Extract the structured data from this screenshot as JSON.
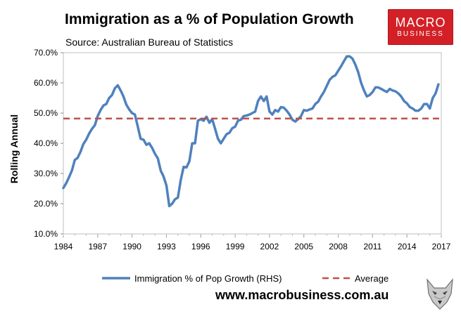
{
  "header": {
    "title": "Immigration as a % of Population Growth",
    "subtitle": "Source: Australian Bureau of Statistics"
  },
  "logo": {
    "top": "MACRO",
    "bottom": "BUSINESS",
    "color": "#d32027"
  },
  "footer": {
    "url": "www.macrobusiness.com.au",
    "icon": "wolf-icon"
  },
  "chart_data": {
    "type": "line",
    "title": "Immigration as a % of Population Growth",
    "ylabel": "Rolling Annual",
    "xlabel": "",
    "ylim": [
      0.1,
      0.7
    ],
    "xlim": [
      1984,
      2017
    ],
    "y_ticks": [
      "10.0%",
      "20.0%",
      "30.0%",
      "40.0%",
      "50.0%",
      "60.0%",
      "70.0%"
    ],
    "x_ticks": [
      "1984",
      "1987",
      "1990",
      "1993",
      "1996",
      "1999",
      "2002",
      "2005",
      "2008",
      "2011",
      "2014",
      "2017"
    ],
    "grid": false,
    "legend_position": "bottom",
    "series": [
      {
        "name": "Immigration % of Pop Growth (RHS)",
        "color": "#4f81bd",
        "style": "solid",
        "x": [
          1984.0,
          1984.25,
          1984.5,
          1984.75,
          1985.0,
          1985.25,
          1985.5,
          1985.75,
          1986.0,
          1986.25,
          1986.5,
          1986.75,
          1987.0,
          1987.25,
          1987.5,
          1987.75,
          1988.0,
          1988.25,
          1988.5,
          1988.75,
          1989.0,
          1989.25,
          1989.5,
          1989.75,
          1990.0,
          1990.25,
          1990.5,
          1990.75,
          1991.0,
          1991.25,
          1991.5,
          1991.75,
          1992.0,
          1992.25,
          1992.5,
          1992.75,
          1993.0,
          1993.25,
          1993.5,
          1993.75,
          1994.0,
          1994.25,
          1994.5,
          1994.75,
          1995.0,
          1995.25,
          1995.5,
          1995.75,
          1996.0,
          1996.25,
          1996.5,
          1996.75,
          1997.0,
          1997.25,
          1997.5,
          1997.75,
          1998.0,
          1998.25,
          1998.5,
          1998.75,
          1999.0,
          1999.25,
          1999.5,
          1999.75,
          2000.0,
          2000.25,
          2000.5,
          2000.75,
          2001.0,
          2001.25,
          2001.5,
          2001.75,
          2002.0,
          2002.25,
          2002.5,
          2002.75,
          2003.0,
          2003.25,
          2003.5,
          2003.75,
          2004.0,
          2004.25,
          2004.5,
          2004.75,
          2005.0,
          2005.25,
          2005.5,
          2005.75,
          2006.0,
          2006.25,
          2006.5,
          2006.75,
          2007.0,
          2007.25,
          2007.5,
          2007.75,
          2008.0,
          2008.25,
          2008.5,
          2008.75,
          2009.0,
          2009.25,
          2009.5,
          2009.75,
          2010.0,
          2010.25,
          2010.5,
          2010.75,
          2011.0,
          2011.25,
          2011.5,
          2011.75,
          2012.0,
          2012.25,
          2012.5,
          2012.75,
          2013.0,
          2013.25,
          2013.5,
          2013.75,
          2014.0,
          2014.25,
          2014.5,
          2014.75,
          2015.0,
          2015.25,
          2015.5,
          2015.75,
          2016.0,
          2016.25,
          2016.5,
          2016.75
        ],
        "values": [
          0.252,
          0.268,
          0.288,
          0.31,
          0.345,
          0.352,
          0.372,
          0.398,
          0.412,
          0.432,
          0.448,
          0.46,
          0.49,
          0.51,
          0.525,
          0.53,
          0.55,
          0.56,
          0.582,
          0.592,
          0.575,
          0.555,
          0.528,
          0.512,
          0.5,
          0.495,
          0.455,
          0.415,
          0.412,
          0.395,
          0.4,
          0.385,
          0.365,
          0.35,
          0.31,
          0.29,
          0.26,
          0.192,
          0.2,
          0.215,
          0.22,
          0.278,
          0.322,
          0.32,
          0.34,
          0.4,
          0.4,
          0.475,
          0.48,
          0.475,
          0.488,
          0.468,
          0.48,
          0.448,
          0.415,
          0.4,
          0.415,
          0.43,
          0.435,
          0.45,
          0.455,
          0.475,
          0.478,
          0.49,
          0.492,
          0.495,
          0.5,
          0.505,
          0.54,
          0.555,
          0.54,
          0.555,
          0.505,
          0.495,
          0.51,
          0.505,
          0.52,
          0.518,
          0.508,
          0.495,
          0.478,
          0.472,
          0.48,
          0.49,
          0.51,
          0.508,
          0.512,
          0.515,
          0.53,
          0.538,
          0.555,
          0.57,
          0.59,
          0.61,
          0.62,
          0.625,
          0.64,
          0.655,
          0.672,
          0.688,
          0.688,
          0.68,
          0.66,
          0.635,
          0.6,
          0.575,
          0.555,
          0.56,
          0.57,
          0.585,
          0.585,
          0.58,
          0.575,
          0.57,
          0.58,
          0.575,
          0.572,
          0.565,
          0.555,
          0.54,
          0.532,
          0.52,
          0.515,
          0.508,
          0.508,
          0.515,
          0.53,
          0.53,
          0.515,
          0.55,
          0.565,
          0.595
        ]
      },
      {
        "name": "Average",
        "color": "#c0504d",
        "style": "dashed",
        "constant": 0.482
      }
    ]
  }
}
